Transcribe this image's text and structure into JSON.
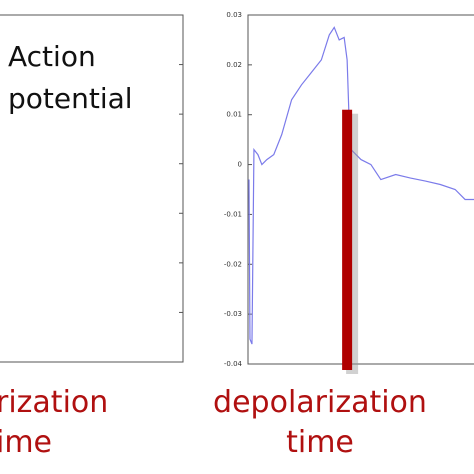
{
  "chart_data": [
    {
      "type": "frame",
      "annotation": [
        "Action",
        "potential"
      ],
      "caption": [
        "rization",
        "ime"
      ],
      "caption_color": "#b01010"
    },
    {
      "type": "line",
      "x": [
        -1,
        0,
        2,
        4,
        8,
        12,
        17,
        24,
        32,
        42,
        52,
        62,
        72,
        80,
        85,
        90,
        95,
        98,
        100,
        102,
        112,
        122,
        132,
        147,
        162,
        177,
        192,
        207,
        217,
        226
      ],
      "series": [
        {
          "color": "#7b7bea",
          "values": [
            -0.003,
            -0.035,
            -0.036,
            0.003,
            0.002,
            0,
            0.001,
            0.002,
            0.006,
            0.013,
            0.016,
            0.0185,
            0.021,
            0.026,
            0.0275,
            0.025,
            0.0255,
            0.021,
            0.009,
            0.003,
            0.001,
            0,
            -0.003,
            -0.002,
            -0.0027,
            -0.0033,
            -0.004,
            -0.005,
            -0.007,
            -0.007
          ]
        }
      ],
      "xlim": [
        -2,
        226
      ],
      "ylim": [
        -0.04,
        0.03
      ],
      "yticks": [
        0.03,
        0.02,
        0.01,
        0,
        -0.01,
        -0.02,
        -0.03,
        -0.04
      ],
      "marker": {
        "x": 98,
        "top": 0.011,
        "color": "#b00000"
      },
      "caption": [
        "depolarization",
        "time"
      ],
      "caption_color": "#b01010"
    }
  ]
}
